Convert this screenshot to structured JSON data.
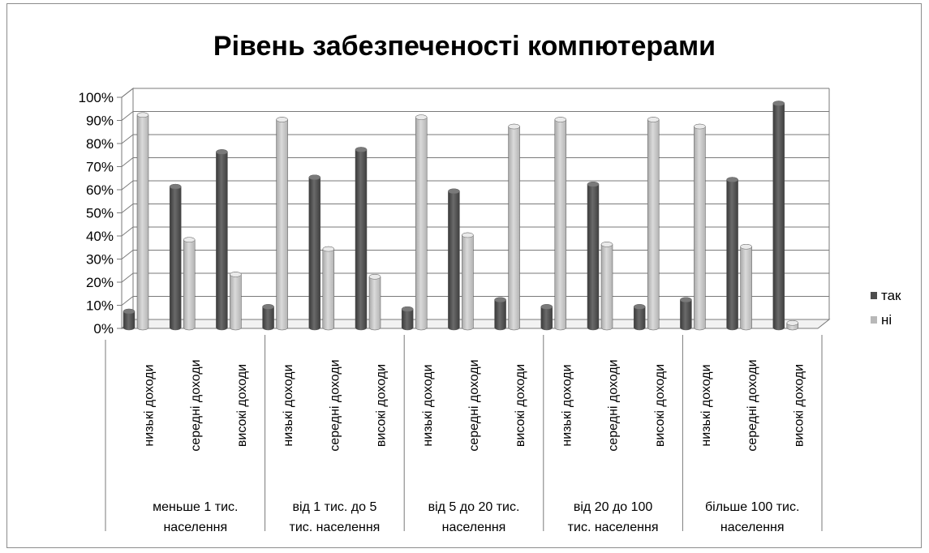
{
  "chart_data": {
    "type": "bar",
    "title": "Рівень забезпеченості компютерами",
    "y_ticks": [
      "0%",
      "10%",
      "20%",
      "30%",
      "40%",
      "50%",
      "60%",
      "70%",
      "80%",
      "90%",
      "100%"
    ],
    "ylim": [
      0,
      100
    ],
    "grid": true,
    "legend_position": "right",
    "groups": [
      {
        "label_lines": [
          "меньше 1 тис.",
          "населення"
        ]
      },
      {
        "label_lines": [
          "від 1 тис. до 5",
          "тис. населення"
        ]
      },
      {
        "label_lines": [
          "від 5 до 20 тис.",
          "населення"
        ]
      },
      {
        "label_lines": [
          "від 20 до 100",
          "тис. населення"
        ]
      },
      {
        "label_lines": [
          "більше 100 тис.",
          "населення"
        ]
      }
    ],
    "subcategories": [
      "низькі доходи",
      "середні доходи",
      "високі доходи"
    ],
    "series": [
      {
        "name": "так",
        "color": "#4d4d4d",
        "values": [
          7,
          61,
          76,
          9,
          65,
          77,
          8,
          59,
          12,
          9,
          62,
          9,
          12,
          64,
          97
        ]
      },
      {
        "name": "ні",
        "color": "#b8b8b8",
        "values": [
          92,
          38,
          23,
          90,
          34,
          22,
          91,
          40,
          87,
          90,
          36,
          90,
          87,
          35,
          2
        ]
      }
    ]
  }
}
